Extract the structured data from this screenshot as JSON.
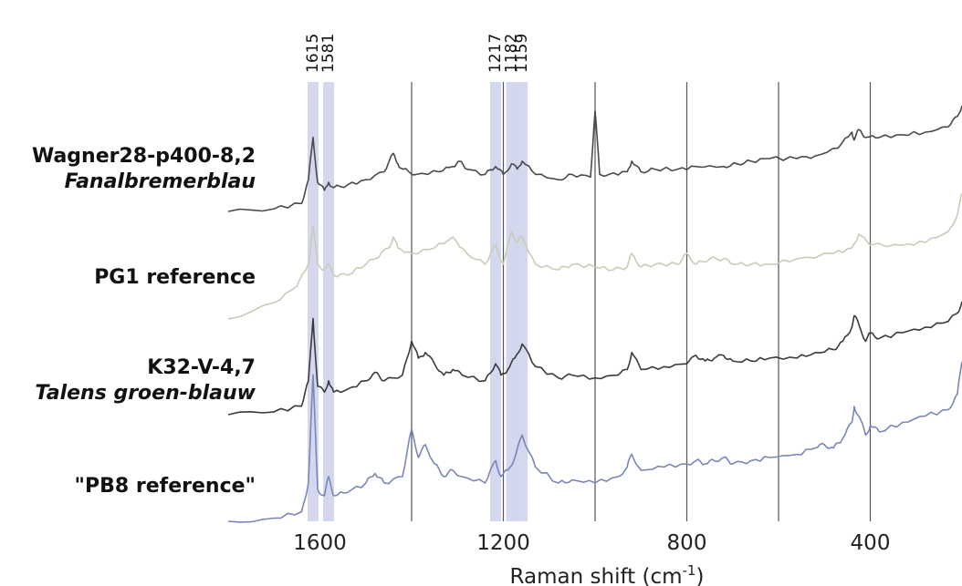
{
  "chart_data": {
    "type": "line",
    "title": "",
    "xlabel": "Raman shift (cm-1)",
    "xlabel_parts": {
      "main": "Raman shift (cm",
      "sup": "-1",
      "close": ")"
    },
    "x_reversed": true,
    "xlim": [
      1800,
      200
    ],
    "x_ticks": [
      1600,
      1200,
      800,
      400
    ],
    "gridlines_x": [
      1400,
      1200,
      1000,
      800,
      600,
      400
    ],
    "highlight_bands": [
      {
        "label": "1615",
        "x": 1615
      },
      {
        "label": "1581",
        "x": 1581
      },
      {
        "label": "1217",
        "x": 1217
      },
      {
        "label": "1182",
        "x": 1182
      },
      {
        "label": "1159",
        "x": 1159
      }
    ],
    "band_color": "#c5cbe8",
    "series": [
      {
        "name": "Wagner28-p400-8,2",
        "subtitle": "Fanalbremerblau",
        "color": "#4a4a4a",
        "x": [
          1800,
          1700,
          1640,
          1625,
          1615,
          1605,
          1590,
          1581,
          1570,
          1540,
          1500,
          1460,
          1440,
          1430,
          1420,
          1390,
          1340,
          1310,
          1295,
          1280,
          1240,
          1217,
          1200,
          1182,
          1170,
          1159,
          1130,
          1080,
          1050,
          1010,
          1000,
          990,
          970,
          930,
          920,
          900,
          870,
          820,
          780,
          720,
          690,
          660,
          620,
          560,
          520,
          470,
          440,
          435,
          425,
          410,
          380,
          330,
          280,
          230,
          210,
          200
        ],
        "y": [
          0.0,
          0.05,
          0.15,
          0.6,
          1.4,
          0.55,
          0.4,
          0.55,
          0.45,
          0.5,
          0.6,
          0.75,
          1.1,
          0.9,
          0.8,
          0.7,
          0.75,
          0.85,
          0.95,
          0.8,
          0.7,
          0.85,
          0.7,
          0.9,
          0.8,
          0.95,
          0.7,
          0.6,
          0.7,
          0.65,
          1.9,
          0.7,
          0.7,
          0.75,
          0.95,
          0.75,
          0.8,
          0.8,
          0.85,
          0.85,
          0.9,
          0.95,
          1.0,
          1.0,
          1.05,
          1.2,
          1.5,
          1.35,
          1.55,
          1.4,
          1.4,
          1.45,
          1.5,
          1.6,
          1.8,
          2.0
        ]
      },
      {
        "name": "PG1 reference",
        "subtitle": "",
        "color": "#c8ccb8",
        "x": [
          1800,
          1700,
          1650,
          1625,
          1615,
          1605,
          1590,
          1581,
          1570,
          1540,
          1500,
          1480,
          1450,
          1440,
          1430,
          1400,
          1350,
          1310,
          1280,
          1240,
          1217,
          1200,
          1182,
          1170,
          1159,
          1130,
          1080,
          1050,
          1000,
          960,
          930,
          920,
          900,
          870,
          820,
          800,
          780,
          750,
          720,
          700,
          660,
          620,
          560,
          480,
          440,
          425,
          400,
          330,
          280,
          230,
          210,
          200
        ],
        "y": [
          0.0,
          0.3,
          0.6,
          1.0,
          1.7,
          1.0,
          0.9,
          1.0,
          0.8,
          0.8,
          1.0,
          1.1,
          1.3,
          1.5,
          1.3,
          1.2,
          1.3,
          1.5,
          1.2,
          1.0,
          1.35,
          1.0,
          1.6,
          1.4,
          1.5,
          1.0,
          0.9,
          1.0,
          0.95,
          0.9,
          0.95,
          1.2,
          0.95,
          1.0,
          1.0,
          1.2,
          1.0,
          1.1,
          1.1,
          1.0,
          1.0,
          1.0,
          1.1,
          1.2,
          1.3,
          1.55,
          1.35,
          1.35,
          1.4,
          1.6,
          1.9,
          2.3
        ]
      },
      {
        "name": "K32-V-4,7",
        "subtitle": "Talens groen-blauw",
        "color": "#3a3a3a",
        "x": [
          1800,
          1700,
          1640,
          1625,
          1615,
          1605,
          1590,
          1581,
          1570,
          1540,
          1500,
          1480,
          1460,
          1420,
          1400,
          1385,
          1370,
          1350,
          1330,
          1310,
          1290,
          1240,
          1217,
          1205,
          1190,
          1175,
          1159,
          1130,
          1080,
          1050,
          1000,
          950,
          930,
          920,
          900,
          850,
          800,
          780,
          760,
          740,
          720,
          700,
          660,
          620,
          560,
          520,
          480,
          460,
          440,
          435,
          425,
          410,
          400,
          380,
          330,
          280,
          230,
          210,
          200
        ],
        "y": [
          0.0,
          0.05,
          0.15,
          0.6,
          1.7,
          0.5,
          0.4,
          0.6,
          0.4,
          0.45,
          0.6,
          0.75,
          0.6,
          0.7,
          1.3,
          1.0,
          1.1,
          0.9,
          0.7,
          0.8,
          0.7,
          0.6,
          0.9,
          0.7,
          0.8,
          1.0,
          1.25,
          0.85,
          0.65,
          0.7,
          0.65,
          0.7,
          0.8,
          1.1,
          0.8,
          0.85,
          0.9,
          1.05,
          0.95,
          1.0,
          1.05,
          0.95,
          0.95,
          1.0,
          1.0,
          1.1,
          1.15,
          1.3,
          1.55,
          1.75,
          1.6,
          1.3,
          1.45,
          1.35,
          1.45,
          1.55,
          1.65,
          1.8,
          2.0
        ]
      },
      {
        "name": "\"PB8 reference\"",
        "subtitle": "",
        "color": "#7a86b8",
        "x": [
          1800,
          1700,
          1640,
          1625,
          1615,
          1605,
          1590,
          1581,
          1570,
          1540,
          1500,
          1480,
          1460,
          1420,
          1400,
          1385,
          1370,
          1350,
          1330,
          1310,
          1290,
          1240,
          1217,
          1205,
          1190,
          1175,
          1159,
          1130,
          1080,
          1050,
          1000,
          950,
          930,
          920,
          900,
          850,
          800,
          780,
          760,
          740,
          720,
          700,
          660,
          620,
          560,
          520,
          500,
          480,
          460,
          440,
          435,
          425,
          410,
          400,
          380,
          330,
          280,
          230,
          210,
          200
        ],
        "y": [
          0.0,
          0.05,
          0.15,
          0.6,
          2.3,
          0.5,
          0.4,
          0.7,
          0.4,
          0.45,
          0.6,
          0.75,
          0.6,
          0.7,
          1.45,
          1.0,
          1.2,
          0.9,
          0.7,
          0.8,
          0.7,
          0.6,
          0.95,
          0.7,
          0.8,
          1.0,
          1.35,
          0.85,
          0.6,
          0.65,
          0.6,
          0.7,
          0.85,
          1.05,
          0.8,
          0.85,
          0.9,
          0.95,
          0.9,
          0.95,
          1.0,
          0.9,
          0.95,
          1.0,
          1.05,
          1.15,
          1.2,
          1.15,
          1.3,
          1.55,
          1.8,
          1.65,
          1.35,
          1.5,
          1.4,
          1.55,
          1.65,
          1.75,
          2.0,
          2.5
        ]
      }
    ]
  }
}
